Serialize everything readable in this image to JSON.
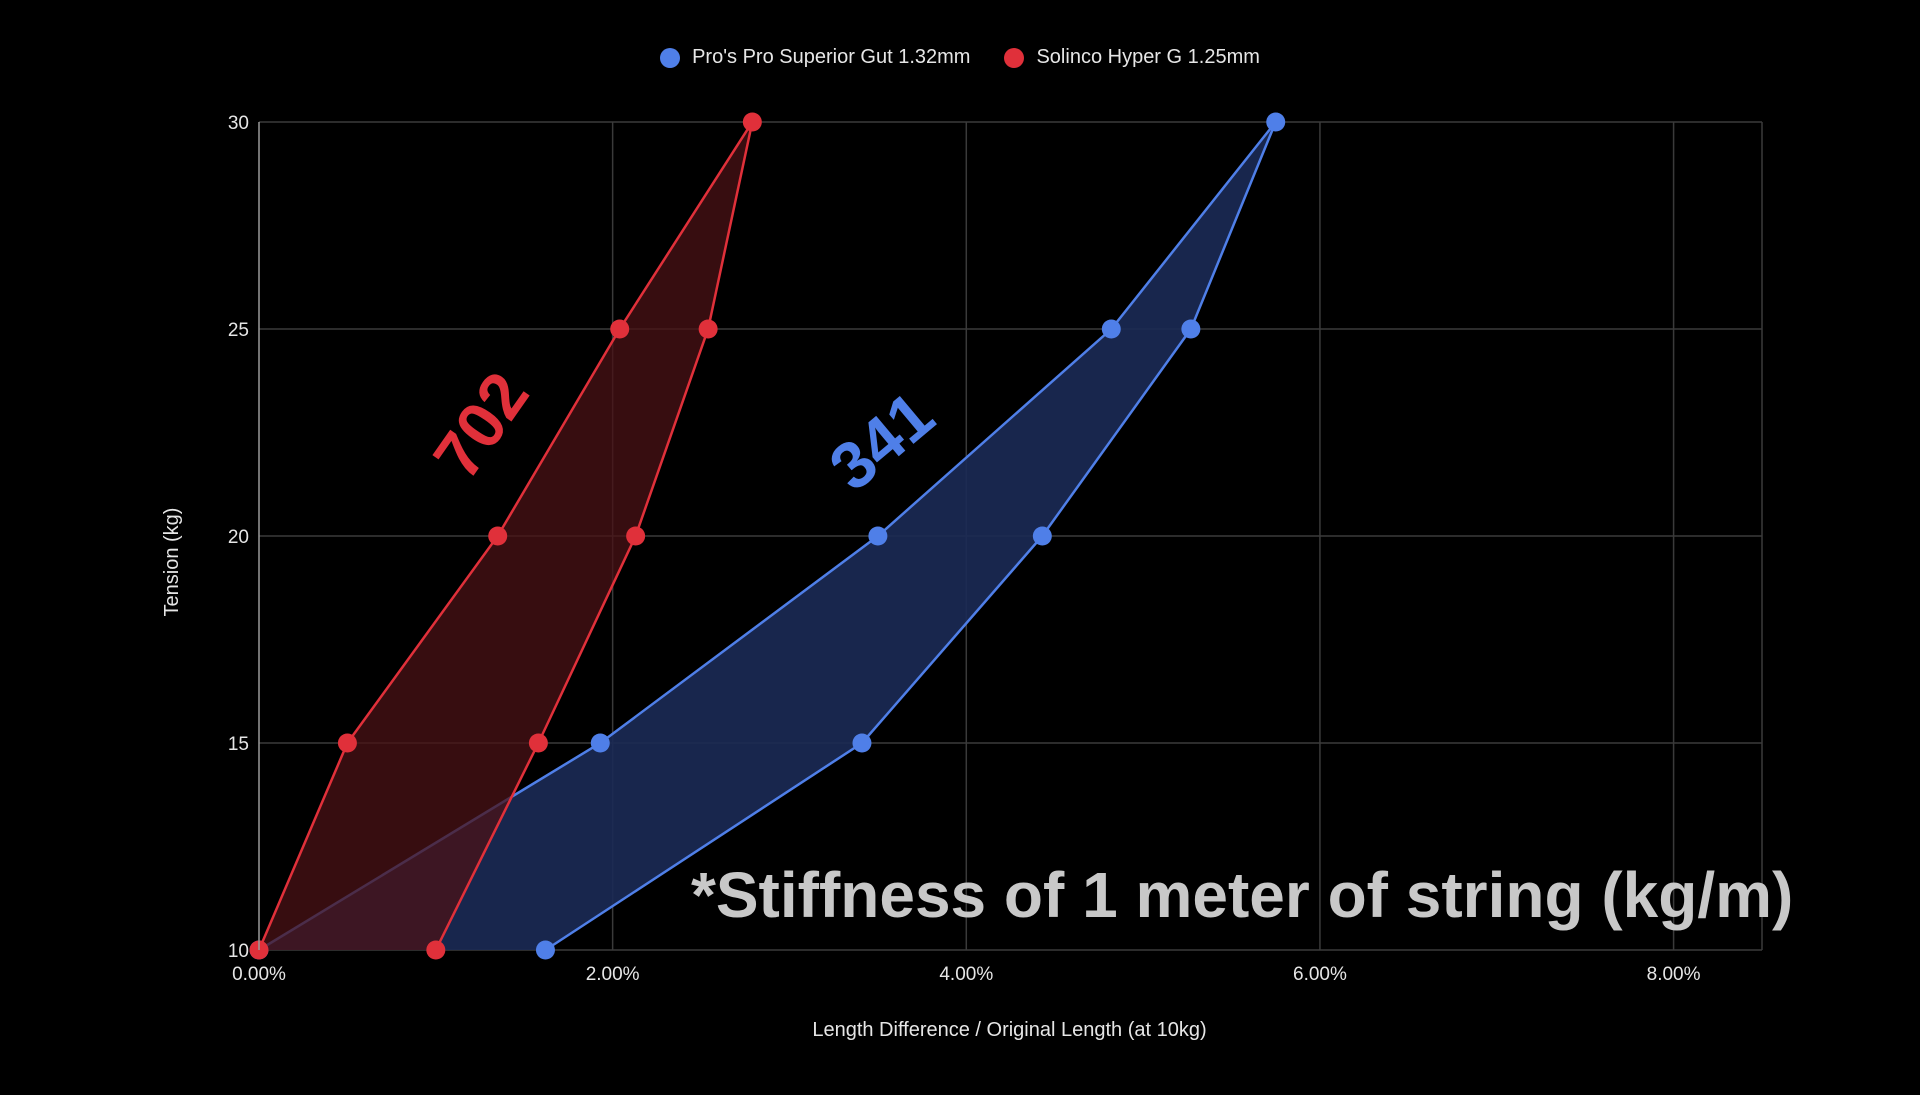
{
  "chart_data": {
    "type": "area",
    "title": "",
    "xlabel": "Length Difference / Original Length (at 10kg)",
    "ylabel": "Tension (kg)",
    "xlim": [
      0,
      8.5
    ],
    "ylim": [
      10,
      30
    ],
    "x_ticks": [
      0,
      2,
      4,
      6,
      8
    ],
    "x_tick_labels": [
      "0.00%",
      "2.00%",
      "4.00%",
      "6.00%",
      "8.00%"
    ],
    "y_ticks": [
      10,
      15,
      20,
      25,
      30
    ],
    "y_tick_labels": [
      "10",
      "15",
      "20",
      "25",
      "30"
    ],
    "grid": true,
    "legend_position": "top-center",
    "series": [
      {
        "name": "Pro's Pro Superior Gut 1.32mm",
        "color": "#4f7fe8",
        "fill": "#1b2a55",
        "upper": [
          {
            "x": 0.0,
            "y": 10
          },
          {
            "x": 1.93,
            "y": 15
          },
          {
            "x": 3.5,
            "y": 20
          },
          {
            "x": 4.82,
            "y": 25
          },
          {
            "x": 5.75,
            "y": 30
          }
        ],
        "lower": [
          {
            "x": 1.62,
            "y": 10
          },
          {
            "x": 3.41,
            "y": 15
          },
          {
            "x": 4.43,
            "y": 20
          },
          {
            "x": 5.27,
            "y": 25
          },
          {
            "x": 5.75,
            "y": 30
          }
        ]
      },
      {
        "name": "Solinco Hyper G 1.25mm",
        "color": "#e0303a",
        "fill": "#4a1216",
        "upper": [
          {
            "x": 0.0,
            "y": 10
          },
          {
            "x": 0.5,
            "y": 15
          },
          {
            "x": 1.35,
            "y": 20
          },
          {
            "x": 2.04,
            "y": 25
          },
          {
            "x": 2.79,
            "y": 30
          }
        ],
        "lower": [
          {
            "x": 1.0,
            "y": 10
          },
          {
            "x": 1.58,
            "y": 15
          },
          {
            "x": 2.13,
            "y": 20
          },
          {
            "x": 2.54,
            "y": 25
          },
          {
            "x": 2.79,
            "y": 30
          }
        ]
      }
    ],
    "annotations": [
      {
        "text": "702",
        "color": "#e0303a",
        "x": 1.28,
        "y": 22.6,
        "rotation_deg": -55
      },
      {
        "text": "341",
        "color": "#4f7fe8",
        "x": 3.54,
        "y": 22.2,
        "rotation_deg": -40
      },
      {
        "text": "*Stiffness of 1 meter of string (kg/m)",
        "color": "#c8c8c8",
        "x": 5.56,
        "y": 11.2,
        "rotation_deg": 0
      }
    ]
  }
}
